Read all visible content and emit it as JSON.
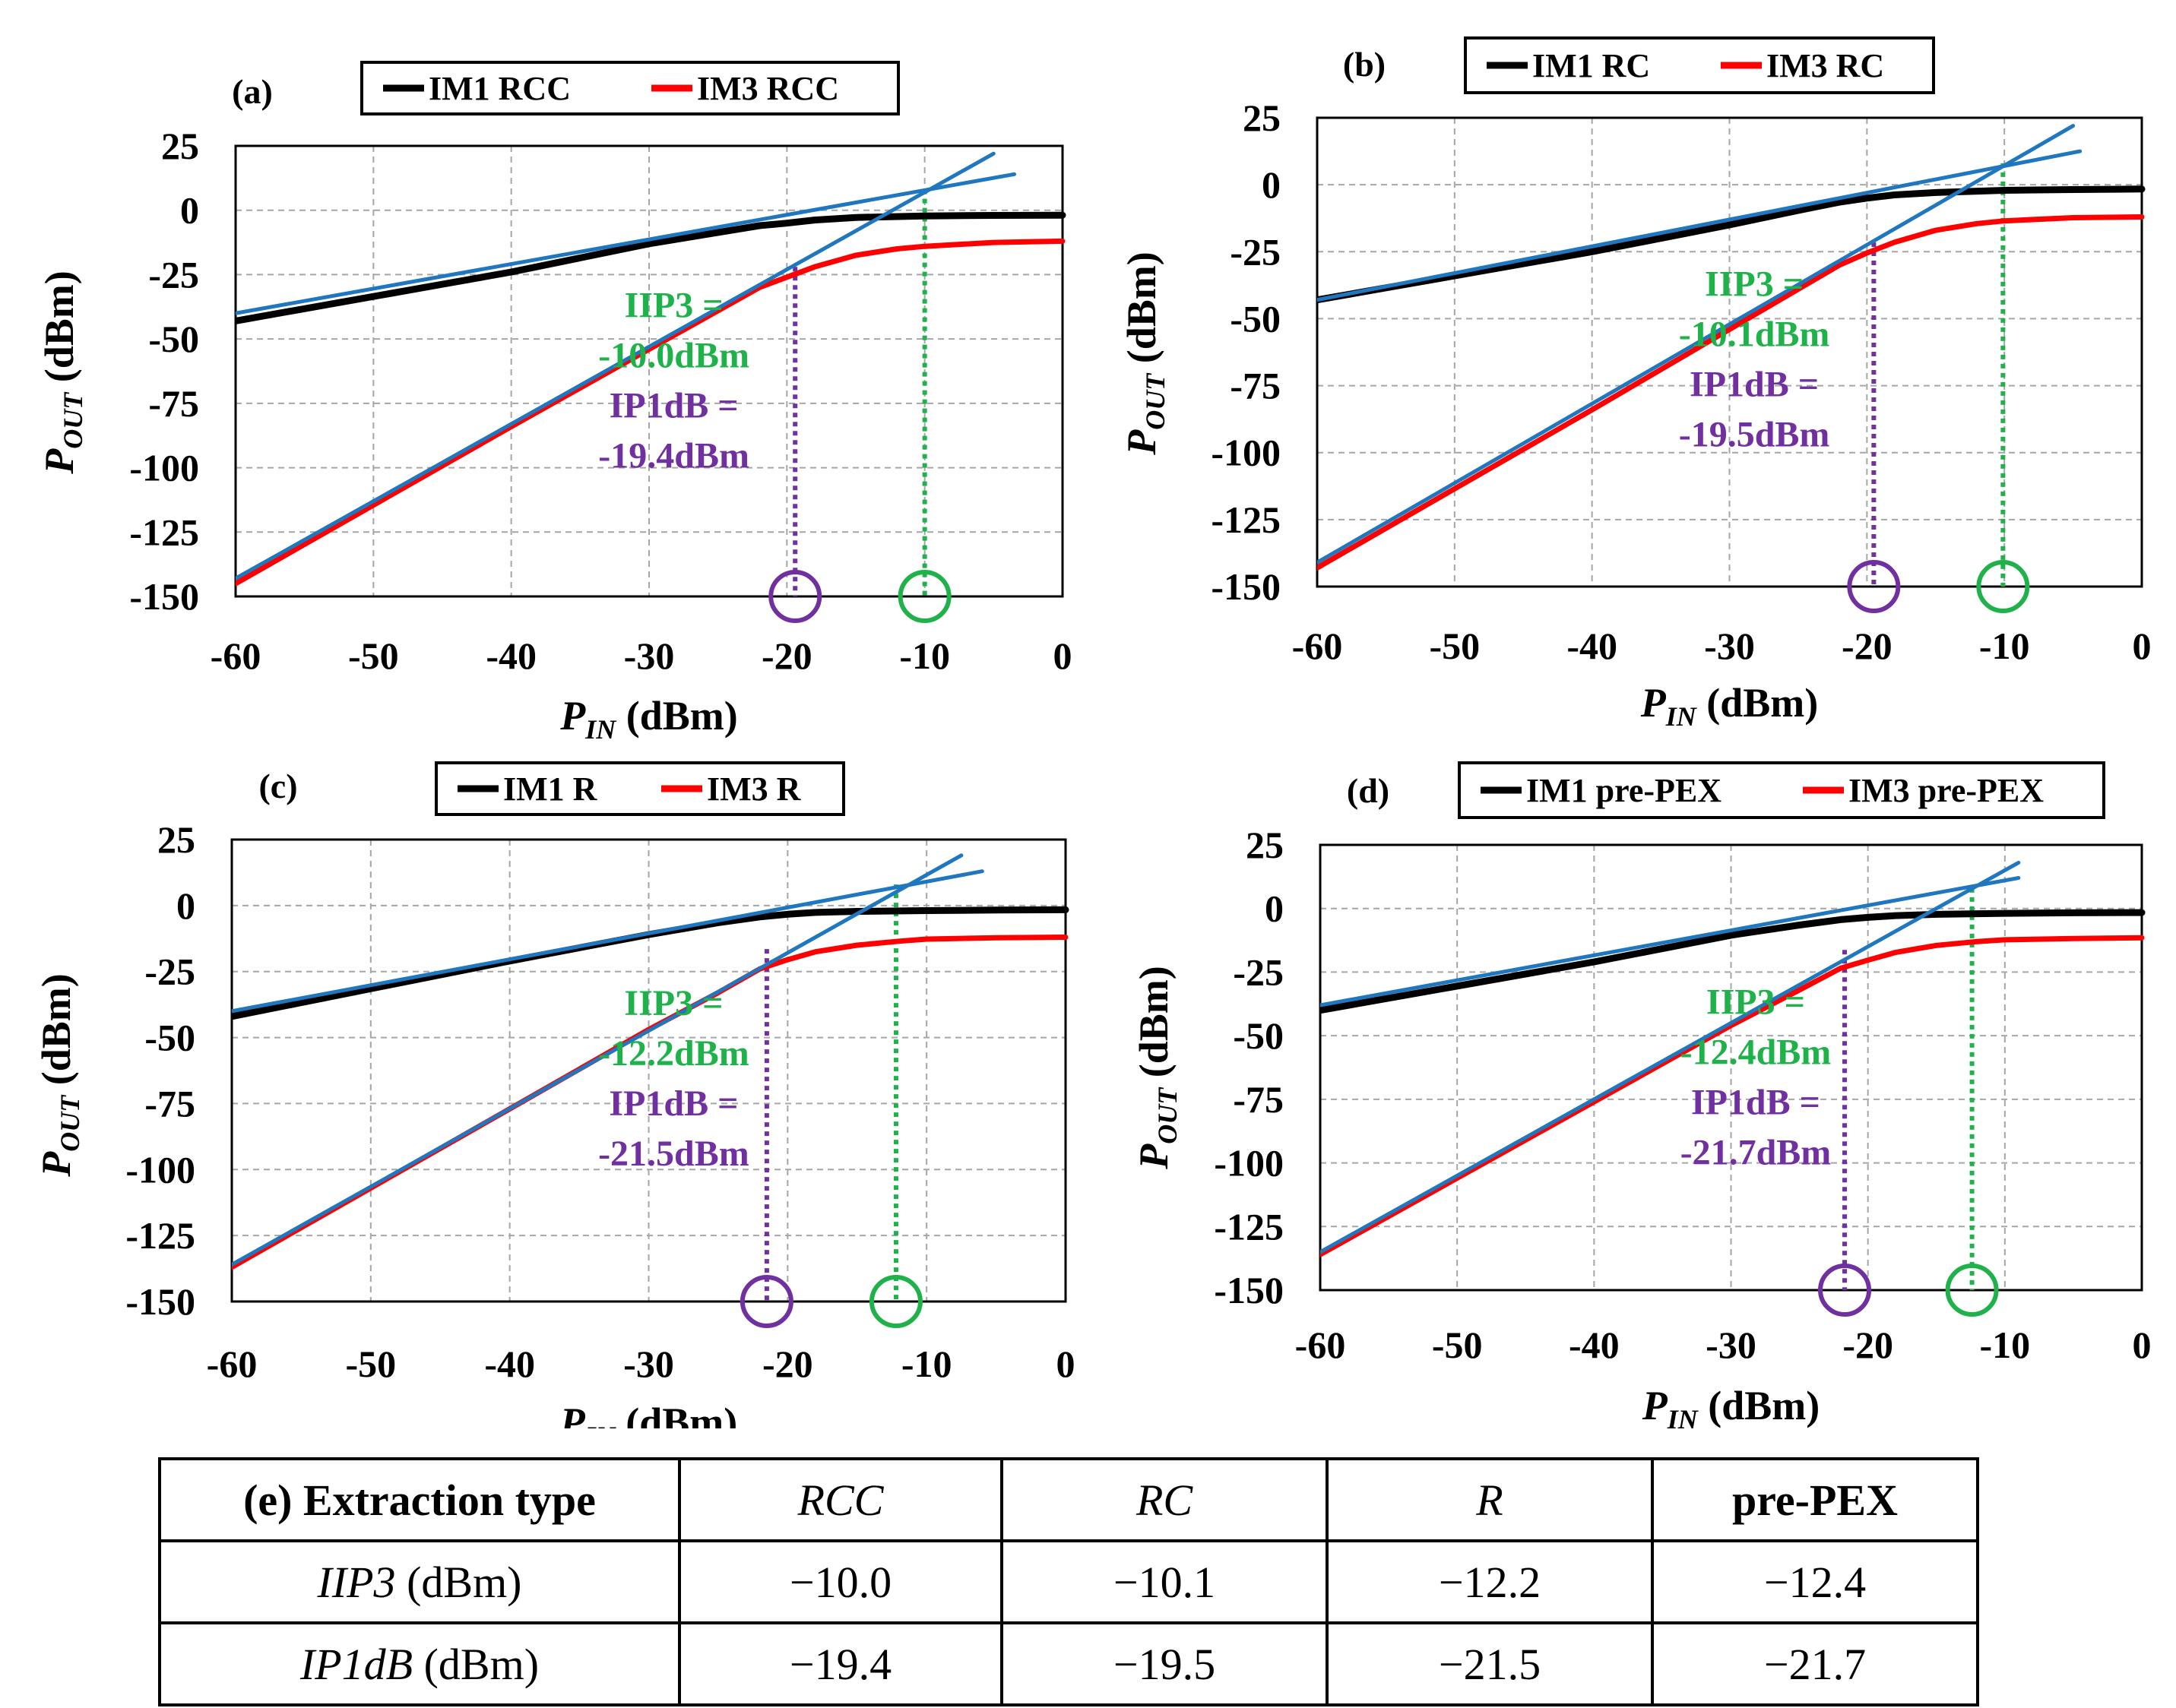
{
  "colors": {
    "im1": "#000000",
    "im3": "#ff0000",
    "fit": "#1f77c0",
    "iip3": "#20b24a",
    "ip1db": "#7030a0",
    "grid": "#a6a6a6"
  },
  "axis_labels": {
    "y_main": "P",
    "y_sub": "OUT",
    "y_unit": " (dBm)",
    "x_main": "P",
    "x_sub": "IN",
    "x_unit": " (dBm)"
  },
  "chart_data": [
    {
      "panel": "(a)",
      "type": "line",
      "legend": [
        "IM1 RCC",
        "IM3 RCC"
      ],
      "xlim": [
        -60,
        0
      ],
      "ylim": [
        -150,
        25
      ],
      "xticks": [
        "-60",
        "-50",
        "-40",
        "-30",
        "-20",
        "-10",
        "0"
      ],
      "yticks": [
        "25",
        "0",
        "-25",
        "-50",
        "-75",
        "-100",
        "-125",
        "-150"
      ],
      "iip3_label": [
        "IIP3 =",
        "-10.0dBm"
      ],
      "ip1db_label": [
        "IP1dB =",
        "-19.4dBm"
      ],
      "iip3": -10.0,
      "ip1db": -19.4,
      "series": [
        {
          "name": "IM1 RCC",
          "x": [
            -60,
            -40,
            -30,
            -25,
            -22,
            -20,
            -18,
            -15,
            -10,
            -5,
            0
          ],
          "y": [
            -43,
            -24,
            -13,
            -8.6,
            -6.0,
            -5.0,
            -3.8,
            -2.8,
            -2.2,
            -2.0,
            -1.9
          ]
        },
        {
          "name": "IM3 RCC",
          "x": [
            -60,
            -40,
            -30,
            -25,
            -22,
            -20,
            -18,
            -15,
            -12,
            -10,
            -5,
            0
          ],
          "y": [
            -145,
            -84,
            -54,
            -39,
            -30,
            -26,
            -22,
            -17.5,
            -15,
            -14,
            -12.5,
            -12
          ]
        },
        {
          "name": "IM1 fit",
          "x": [
            -60,
            -3.5
          ],
          "y": [
            -40,
            14
          ]
        },
        {
          "name": "IM3 fit",
          "x": [
            -60,
            -5
          ],
          "y": [
            -143,
            22
          ]
        }
      ]
    },
    {
      "panel": "(b)",
      "type": "line",
      "legend": [
        "IM1 RC",
        "IM3 RC"
      ],
      "xlim": [
        -60,
        0
      ],
      "ylim": [
        -150,
        25
      ],
      "xticks": [
        "-60",
        "-50",
        "-40",
        "-30",
        "-20",
        "-10",
        "0"
      ],
      "yticks": [
        "25",
        "0",
        "-25",
        "-50",
        "-75",
        "-100",
        "-125",
        "-150"
      ],
      "iip3_label": [
        "IIP3 =",
        "-10.1dBm"
      ],
      "ip1db_label": [
        "IP1dB =",
        "-19.5dBm"
      ],
      "iip3": -10.1,
      "ip1db": -19.5,
      "series": [
        {
          "name": "IM1 RC",
          "x": [
            -60,
            -40,
            -30,
            -25,
            -22,
            -20,
            -18,
            -15,
            -10,
            -5,
            0
          ],
          "y": [
            -43,
            -25,
            -15,
            -9.6,
            -6.5,
            -5.0,
            -3.8,
            -2.9,
            -2.1,
            -1.8,
            -1.6
          ]
        },
        {
          "name": "IM3 RC",
          "x": [
            -60,
            -40,
            -30,
            -25,
            -22,
            -20,
            -18,
            -15,
            -12,
            -10,
            -5,
            0
          ],
          "y": [
            -143,
            -84,
            -54,
            -39,
            -30,
            -25.5,
            -21.5,
            -17,
            -14.5,
            -13.5,
            -12.3,
            -12
          ]
        },
        {
          "name": "IM1 fit",
          "x": [
            -60,
            -4.5
          ],
          "y": [
            -43,
            12.5
          ]
        },
        {
          "name": "IM3 fit",
          "x": [
            -60,
            -5
          ],
          "y": [
            -141,
            22
          ]
        }
      ]
    },
    {
      "panel": "(c)",
      "type": "line",
      "legend": [
        "IM1 R",
        "IM3 R"
      ],
      "xlim": [
        -60,
        0
      ],
      "ylim": [
        -150,
        25
      ],
      "xticks": [
        "-60",
        "-50",
        "-40",
        "-30",
        "-20",
        "-10",
        "0"
      ],
      "yticks": [
        "25",
        "0",
        "-25",
        "-50",
        "-75",
        "-100",
        "-125",
        "-150"
      ],
      "iip3_label": [
        "IIP3 =",
        "-12.2dBm"
      ],
      "ip1db_label": [
        "IP1dB =",
        "-21.5dBm"
      ],
      "iip3": -12.2,
      "ip1db": -21.5,
      "series": [
        {
          "name": "IM1 R",
          "x": [
            -60,
            -40,
            -30,
            -25,
            -22,
            -20,
            -18,
            -15,
            -10,
            -5,
            0
          ],
          "y": [
            -42,
            -21,
            -11,
            -6.5,
            -4.3,
            -3.3,
            -2.6,
            -2.2,
            -1.9,
            -1.7,
            -1.6
          ]
        },
        {
          "name": "IM3 R",
          "x": [
            -60,
            -40,
            -30,
            -25,
            -22,
            -20,
            -18,
            -15,
            -12,
            -10,
            -5,
            0
          ],
          "y": [
            -137,
            -77,
            -47,
            -33,
            -24,
            -20.5,
            -17.5,
            -15,
            -13.5,
            -12.7,
            -12.2,
            -12
          ]
        },
        {
          "name": "IM1 fit",
          "x": [
            -60,
            -6
          ],
          "y": [
            -40,
            13
          ]
        },
        {
          "name": "IM3 fit",
          "x": [
            -60,
            -7.5
          ],
          "y": [
            -136,
            19
          ]
        }
      ]
    },
    {
      "panel": "(d)",
      "type": "line",
      "legend": [
        "IM1 pre-PEX",
        "IM3 pre-PEX"
      ],
      "xlim": [
        -60,
        0
      ],
      "ylim": [
        -150,
        25
      ],
      "xticks": [
        "-60",
        "-50",
        "-40",
        "-30",
        "-20",
        "-10",
        "0"
      ],
      "yticks": [
        "25",
        "0",
        "-25",
        "-50",
        "-75",
        "-100",
        "-125",
        "-150"
      ],
      "iip3_label": [
        "IIP3 =",
        "-12.4dBm"
      ],
      "ip1db_label": [
        "IP1dB =",
        "-21.7dBm"
      ],
      "iip3": -12.4,
      "ip1db": -21.7,
      "series": [
        {
          "name": "IM1 pre-PEX",
          "x": [
            -60,
            -40,
            -30,
            -25,
            -22,
            -20,
            -18,
            -15,
            -10,
            -5,
            0
          ],
          "y": [
            -40,
            -21,
            -10.5,
            -6.5,
            -4.4,
            -3.5,
            -2.8,
            -2.3,
            -1.9,
            -1.7,
            -1.6
          ]
        },
        {
          "name": "IM3 pre-PEX",
          "x": [
            -60,
            -40,
            -30,
            -25,
            -22,
            -20,
            -18,
            -15,
            -12,
            -10,
            -5,
            0
          ],
          "y": [
            -136,
            -76,
            -46,
            -32,
            -23.5,
            -20.3,
            -17.3,
            -14.5,
            -13,
            -12.3,
            -11.8,
            -11.5
          ]
        },
        {
          "name": "IM1 fit",
          "x": [
            -60,
            -9
          ],
          "y": [
            -38,
            12
          ]
        },
        {
          "name": "IM3 fit",
          "x": [
            -60,
            -9
          ],
          "y": [
            -135,
            18
          ]
        }
      ]
    }
  ],
  "table": {
    "header": {
      "label": "(e) Extraction type",
      "cols": [
        "RCC",
        "RC",
        "R",
        "pre-PEX"
      ]
    },
    "rows": [
      {
        "name_em": "IIP3",
        "name_rest": " (dBm)",
        "values": [
          "−10.0",
          "−10.1",
          "−12.2",
          "−12.4"
        ]
      },
      {
        "name_em": "IP1dB",
        "name_rest": " (dBm)",
        "values": [
          "−19.4",
          "−19.5",
          "−21.5",
          "−21.7"
        ]
      }
    ]
  }
}
